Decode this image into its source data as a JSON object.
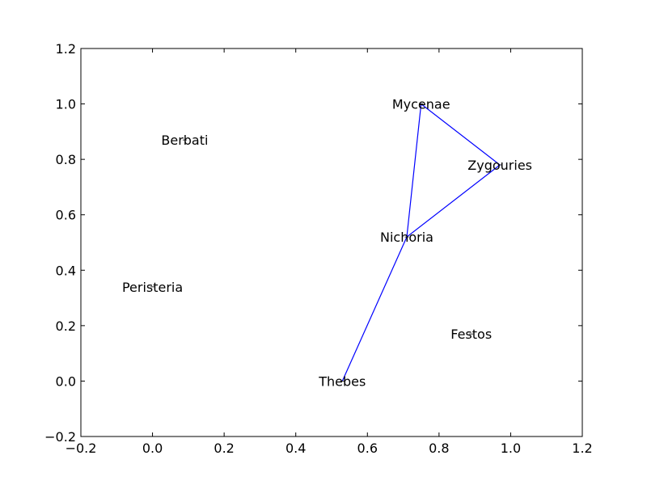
{
  "chart_data": {
    "type": "scatter",
    "title": "",
    "xlabel": "",
    "ylabel": "",
    "xlim": [
      -0.2,
      1.2
    ],
    "ylim": [
      -0.2,
      1.2
    ],
    "grid": false,
    "xticks": [
      -0.2,
      0.0,
      0.2,
      0.4,
      0.6,
      0.8,
      1.0,
      1.2
    ],
    "yticks": [
      -0.2,
      0.0,
      0.2,
      0.4,
      0.6,
      0.8,
      1.0,
      1.2
    ],
    "xtick_labels": [
      "−0.2",
      "0.0",
      "0.2",
      "0.4",
      "0.6",
      "0.8",
      "1.0",
      "1.2"
    ],
    "ytick_labels": [
      "−0.2",
      "0.0",
      "0.2",
      "0.4",
      "0.6",
      "0.8",
      "1.0",
      "1.2"
    ],
    "points": [
      {
        "label": "Mycenae",
        "x": 0.75,
        "y": 1.0
      },
      {
        "label": "Zygouries",
        "x": 0.97,
        "y": 0.78
      },
      {
        "label": "Berbati",
        "x": 0.09,
        "y": 0.87
      },
      {
        "label": "Nichoria",
        "x": 0.71,
        "y": 0.52
      },
      {
        "label": "Peristeria",
        "x": 0.0,
        "y": 0.34
      },
      {
        "label": "Festos",
        "x": 0.89,
        "y": 0.17
      },
      {
        "label": "Thebes",
        "x": 0.53,
        "y": 0.0
      }
    ],
    "route": {
      "color": "#0000ff",
      "points": [
        {
          "x": 0.53,
          "y": 0.0
        },
        {
          "x": 0.71,
          "y": 0.52
        },
        {
          "x": 0.97,
          "y": 0.78
        },
        {
          "x": 0.75,
          "y": 1.0
        },
        {
          "x": 0.71,
          "y": 0.52
        }
      ]
    }
  }
}
